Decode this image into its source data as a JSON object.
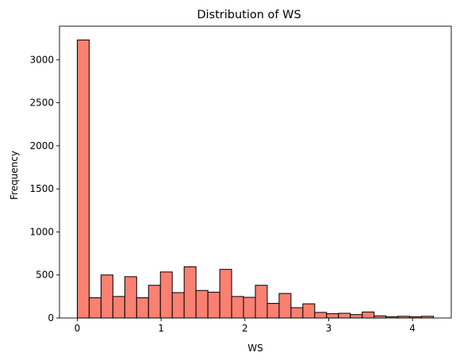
{
  "chart_data": {
    "type": "bar",
    "title": "Distribution of WS",
    "xlabel": "WS",
    "ylabel": "Frequency",
    "bin_edges": [
      0.0,
      0.1417,
      0.2833,
      0.425,
      0.5667,
      0.7083,
      0.85,
      0.9917,
      1.1333,
      1.275,
      1.4167,
      1.5583,
      1.7,
      1.8417,
      1.9833,
      2.125,
      2.2667,
      2.4083,
      2.55,
      2.6917,
      2.8333,
      2.975,
      3.1167,
      3.2583,
      3.4,
      3.5417,
      3.6833,
      3.825,
      3.9667,
      4.1083,
      4.25
    ],
    "values": [
      3230,
      235,
      500,
      250,
      480,
      235,
      380,
      535,
      295,
      595,
      320,
      300,
      565,
      250,
      240,
      380,
      170,
      285,
      120,
      165,
      65,
      50,
      55,
      40,
      70,
      25,
      15,
      20,
      15,
      20
    ],
    "xlim": [
      -0.2125,
      4.4625
    ],
    "ylim": [
      0,
      3390
    ],
    "x_ticks": [
      0,
      1,
      2,
      3,
      4
    ],
    "y_ticks": [
      0,
      500,
      1000,
      1500,
      2000,
      2500,
      3000
    ],
    "x_tick_labels": [
      "0",
      "1",
      "2",
      "3",
      "4"
    ],
    "y_tick_labels": [
      "0",
      "500",
      "1000",
      "1500",
      "2000",
      "2500",
      "3000"
    ],
    "bar_color": "#fa8072",
    "edge_color": "#000000",
    "grid": false,
    "legend": "none"
  }
}
